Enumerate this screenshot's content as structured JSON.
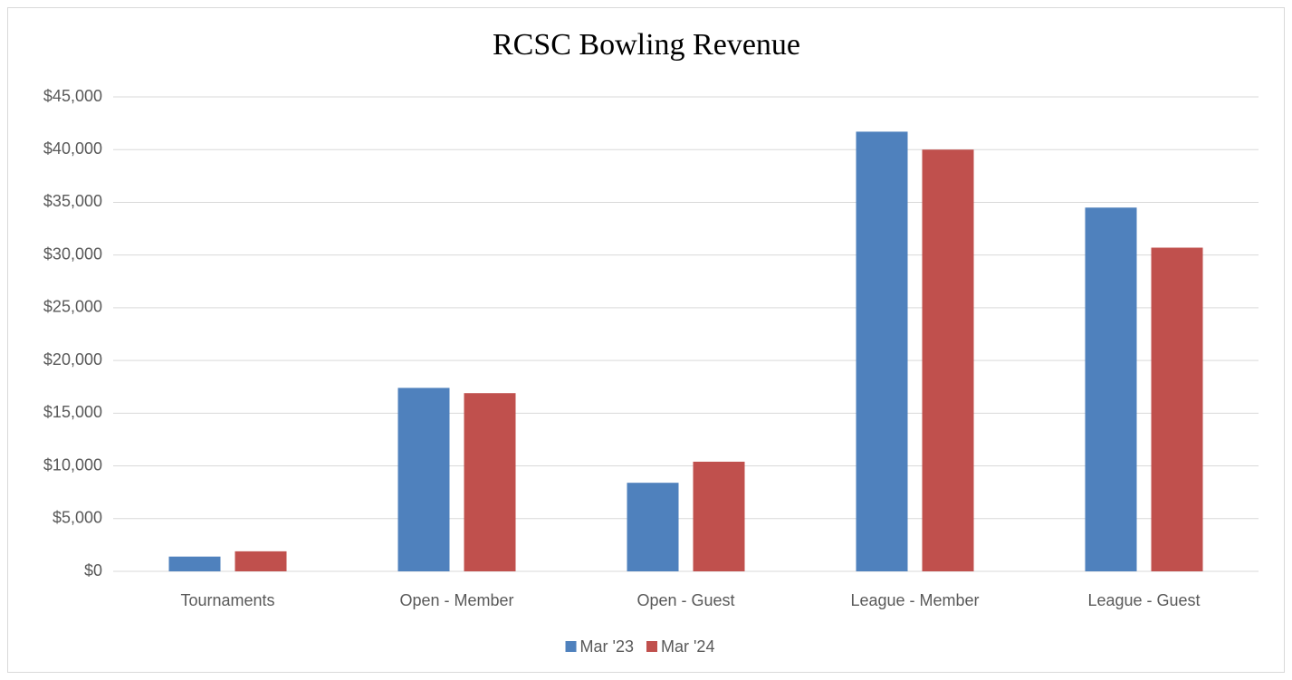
{
  "chart_data": {
    "type": "bar",
    "title": "RCSC Bowling Revenue",
    "categories": [
      "Tournaments",
      "Open - Member",
      "Open - Guest",
      "League - Member",
      "League - Guest"
    ],
    "series": [
      {
        "name": "Mar '23",
        "color": "#4f81bd",
        "values": [
          1400,
          17400,
          8400,
          41700,
          34500
        ]
      },
      {
        "name": "Mar '24",
        "color": "#c0504d",
        "values": [
          1900,
          16900,
          10400,
          40000,
          30700
        ]
      }
    ],
    "ylim": [
      0,
      45000
    ],
    "yticks": [
      {
        "value": 0,
        "label": "$0"
      },
      {
        "value": 5000,
        "label": "$5,000"
      },
      {
        "value": 10000,
        "label": "$10,000"
      },
      {
        "value": 15000,
        "label": "$15,000"
      },
      {
        "value": 20000,
        "label": "$20,000"
      },
      {
        "value": 25000,
        "label": "$25,000"
      },
      {
        "value": 30000,
        "label": "$30,000"
      },
      {
        "value": 35000,
        "label": "$35,000"
      },
      {
        "value": 40000,
        "label": "$40,000"
      },
      {
        "value": 45000,
        "label": "$45,000"
      }
    ],
    "grid": true,
    "legend": "bottom"
  }
}
